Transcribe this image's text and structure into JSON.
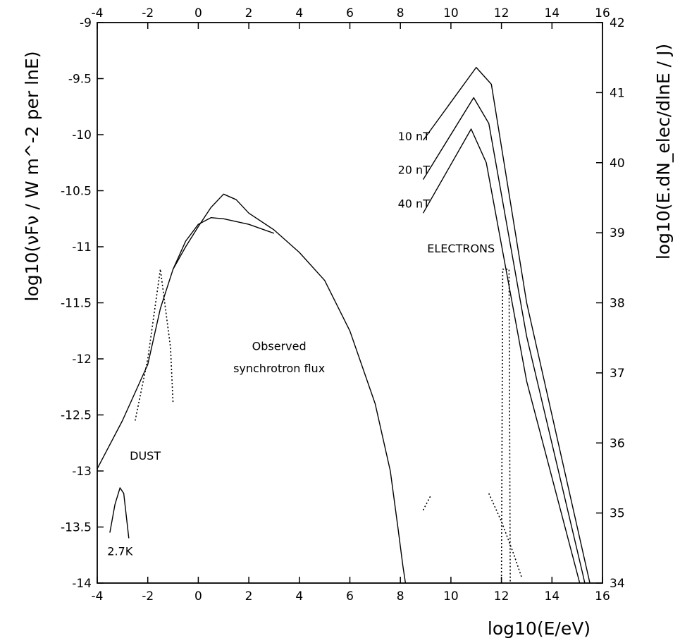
{
  "chart_data": {
    "type": "line",
    "title": "",
    "xlabel": "log10(E/eV)",
    "ylabel_left": "log10(νFν / W m^-2 per lnE)",
    "ylabel_right": "log10(E.dN_elec/dlnE / J)",
    "xlim": [
      -4,
      16
    ],
    "ylim_left": [
      -14,
      -9
    ],
    "ylim_right": [
      34,
      42
    ],
    "grid": false,
    "x_ticks": [
      "-4",
      "-2",
      "0",
      "2",
      "4",
      "6",
      "8",
      "10",
      "12",
      "14",
      "16"
    ],
    "y_left_ticks": [
      "-9",
      "-9.5",
      "-10",
      "-10.5",
      "-11",
      "-11.5",
      "-12",
      "-12.5",
      "-13",
      "-13.5",
      "-14"
    ],
    "y_right_ticks": [
      "42",
      "41",
      "40",
      "39",
      "38",
      "37",
      "36",
      "35",
      "34"
    ],
    "series": [
      {
        "axis": "left",
        "style": "solid",
        "points": [
          [
            -4.0,
            -12.98
          ],
          [
            -3.0,
            -12.55
          ],
          [
            -2.0,
            -12.05
          ],
          [
            -1.5,
            -11.55
          ],
          [
            -1.0,
            -11.2
          ],
          [
            -0.5,
            -11.0
          ],
          [
            0.0,
            -10.82
          ],
          [
            0.5,
            -10.65
          ],
          [
            1.0,
            -10.53
          ],
          [
            1.5,
            -10.58
          ],
          [
            2.0,
            -10.7
          ],
          [
            3.0,
            -10.85
          ],
          [
            4.0,
            -11.05
          ],
          [
            5.0,
            -11.3
          ],
          [
            6.0,
            -11.75
          ],
          [
            7.0,
            -12.4
          ],
          [
            7.6,
            -13.0
          ],
          [
            7.9,
            -13.5
          ],
          [
            8.1,
            -13.85
          ],
          [
            8.2,
            -14.0
          ]
        ]
      },
      {
        "axis": "left",
        "style": "solid",
        "points": [
          [
            -1.0,
            -11.2
          ],
          [
            -0.5,
            -10.95
          ],
          [
            0.0,
            -10.8
          ],
          [
            0.5,
            -10.74
          ],
          [
            1.0,
            -10.75
          ],
          [
            2.0,
            -10.8
          ],
          [
            3.0,
            -10.88
          ]
        ]
      },
      {
        "axis": "left",
        "style": "dotted",
        "points": [
          [
            -2.5,
            -12.55
          ],
          [
            -2.0,
            -12.0
          ],
          [
            -1.5,
            -11.2
          ],
          [
            -1.1,
            -11.9
          ],
          [
            -1.0,
            -12.4
          ]
        ]
      },
      {
        "axis": "left",
        "style": "solid",
        "points": [
          [
            -3.5,
            -13.55
          ],
          [
            -3.3,
            -13.3
          ],
          [
            -3.1,
            -13.15
          ],
          [
            -2.95,
            -13.2
          ],
          [
            -2.8,
            -13.5
          ],
          [
            -2.75,
            -13.6
          ]
        ]
      },
      {
        "axis": "left",
        "style": "dotted",
        "points": [
          [
            8.9,
            -13.35
          ],
          [
            9.2,
            -13.22
          ]
        ]
      },
      {
        "axis": "left",
        "style": "dotted",
        "points": [
          [
            11.5,
            -13.2
          ],
          [
            12.0,
            -13.45
          ],
          [
            12.5,
            -13.75
          ],
          [
            12.8,
            -13.95
          ]
        ]
      },
      {
        "axis": "left",
        "style": "dotted",
        "points": [
          [
            12.0,
            -14.0
          ],
          [
            12.05,
            -11.2
          ],
          [
            12.3,
            -11.2
          ],
          [
            12.35,
            -14.0
          ]
        ]
      },
      {
        "name": "10 nT",
        "axis": "left",
        "style": "solid",
        "points": [
          [
            8.9,
            -10.05
          ],
          [
            11.0,
            -9.4
          ],
          [
            11.6,
            -9.55
          ],
          [
            13.0,
            -11.5
          ],
          [
            15.3,
            -13.8
          ],
          [
            15.5,
            -14.0
          ]
        ]
      },
      {
        "name": "20 nT",
        "axis": "left",
        "style": "solid",
        "points": [
          [
            8.9,
            -10.4
          ],
          [
            10.9,
            -9.67
          ],
          [
            11.5,
            -9.9
          ],
          [
            13.0,
            -11.8
          ],
          [
            15.2,
            -13.9
          ],
          [
            15.3,
            -14.0
          ]
        ]
      },
      {
        "name": "40 nT",
        "axis": "left",
        "style": "solid",
        "points": [
          [
            8.9,
            -10.7
          ],
          [
            10.8,
            -9.95
          ],
          [
            11.4,
            -10.25
          ],
          [
            13.0,
            -12.2
          ],
          [
            15.1,
            -14.0
          ]
        ]
      }
    ],
    "annotations": [
      {
        "text": "10 nT",
        "x": 7.9,
        "y": -10.05
      },
      {
        "text": "20 nT",
        "x": 7.9,
        "y": -10.35
      },
      {
        "text": "40 nT",
        "x": 7.9,
        "y": -10.65
      },
      {
        "text": "ELECTRONS",
        "x": 10.4,
        "y": -11.05
      },
      {
        "text": "Observed",
        "x": 3.2,
        "y": -11.92
      },
      {
        "text": "synchrotron flux",
        "x": 3.2,
        "y": -12.12
      },
      {
        "text": "DUST",
        "x": -2.1,
        "y": -12.9
      },
      {
        "text": "2.7K",
        "x": -3.1,
        "y": -13.75
      }
    ]
  }
}
